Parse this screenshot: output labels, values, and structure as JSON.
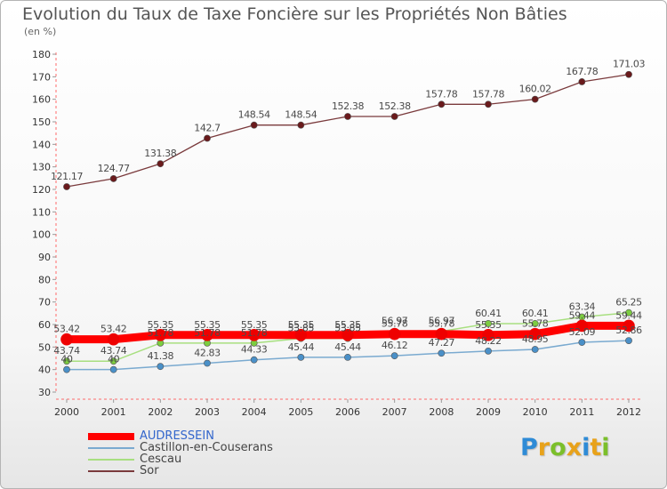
{
  "page": {
    "title": "Evolution du Taux de Taxe Foncière sur les Propriétés Non Bâties",
    "subtitle": "(en %)",
    "logo": {
      "text": "Proxiti",
      "letters": [
        {
          "ch": "P",
          "color": "#2e8bd6"
        },
        {
          "ch": "r",
          "color": "#e8a21a"
        },
        {
          "ch": "o",
          "color": "#7bbf2a"
        },
        {
          "ch": "x",
          "color": "#e8a21a"
        },
        {
          "ch": "i",
          "color": "#2e8bd6"
        },
        {
          "ch": "t",
          "color": "#e8a21a"
        },
        {
          "ch": "i",
          "color": "#7bbf2a"
        }
      ]
    }
  },
  "chart_data": {
    "type": "line",
    "title": "Evolution du Taux de Taxe Foncière sur les Propriétés Non Bâties",
    "ylabel": "(en %)",
    "xlabel": "",
    "ylim": [
      30,
      180
    ],
    "ytick_step": 10,
    "grid": false,
    "legend_position": "bottom-left",
    "x": [
      "2000",
      "2001",
      "2002",
      "2003",
      "2004",
      "2005",
      "2006",
      "2007",
      "2008",
      "2009",
      "2010",
      "2011",
      "2012"
    ],
    "series": [
      {
        "name": "Sor",
        "color": "#7a3a3c",
        "point_fill": "#6a1a1c",
        "line_width": 1.3,
        "values": [
          121.17,
          124.77,
          131.38,
          142.7,
          148.54,
          148.54,
          152.38,
          152.38,
          157.78,
          157.78,
          160.02,
          167.78,
          171.03
        ],
        "labels": [
          "121.17",
          "124.77",
          "131.38",
          "142.7",
          "148.54",
          "148.54",
          "152.38",
          "152.38",
          "157.78",
          "157.78",
          "160.02",
          "167.78",
          "171.03"
        ]
      },
      {
        "name": "Cescau",
        "color": "#a8df80",
        "point_fill": "#7ccd40",
        "line_width": 1.5,
        "values": [
          43.74,
          43.74,
          51.78,
          51.78,
          51.78,
          53.85,
          53.85,
          56.97,
          56.97,
          60.41,
          60.41,
          63.34,
          65.25
        ],
        "labels": [
          "43.74",
          "43.74",
          "51.78",
          "51.78",
          "51.78",
          "53.85",
          "53.85",
          "56.97",
          "56.97",
          "60.41",
          "60.41",
          "63.34",
          "65.25"
        ]
      },
      {
        "name": "Castillon-en-Couserans",
        "color": "#7aaad0",
        "point_fill": "#4a90c8",
        "line_width": 1.5,
        "values": [
          40,
          40,
          41.38,
          42.83,
          44.33,
          45.44,
          45.44,
          46.12,
          47.27,
          48.22,
          48.95,
          52.09,
          52.86
        ],
        "labels": [
          "40",
          "40",
          "41.38",
          "42.83",
          "44.33",
          "45.44",
          "45.44",
          "46.12",
          "47.27",
          "48.22",
          "48.95",
          "52.09",
          "52.86"
        ]
      },
      {
        "name": "AUDRESSEIN",
        "color": "#ff0000",
        "point_fill": "#ee0000",
        "line_width": 9,
        "values": [
          53.42,
          53.42,
          55.35,
          55.35,
          55.35,
          55.35,
          55.35,
          55.78,
          55.78,
          55.35,
          55.78,
          59.44,
          59.44
        ],
        "labels": [
          "53.42",
          "53.42",
          "55.35",
          "55.35",
          "55.35",
          "55.35",
          "55.35",
          "55.78",
          "55.78",
          "55.35",
          "55.78",
          "59.44",
          "59.44"
        ]
      }
    ],
    "legend": [
      {
        "name": "AUDRESSEIN",
        "color": "#ff0000",
        "thickness": 8
      },
      {
        "name": "Castillon-en-Couserans",
        "color": "#7aaad0",
        "thickness": 2
      },
      {
        "name": "Cescau",
        "color": "#a8df80",
        "thickness": 2
      },
      {
        "name": "Sor",
        "color": "#7a3a3c",
        "thickness": 2
      }
    ]
  }
}
